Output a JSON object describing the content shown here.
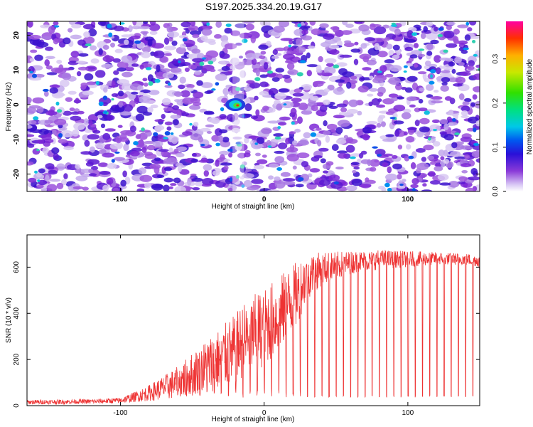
{
  "title": "S197.2025.334.20.19.G17",
  "chart_data": [
    {
      "type": "heatmap",
      "xlabel": "Height of straight line (km)",
      "ylabel": "Frequency (Hz)",
      "xlim": [
        -165,
        150
      ],
      "ylim": [
        -25,
        24
      ],
      "xticks": [
        "-100",
        "0",
        "100"
      ],
      "xtick_values": [
        -100,
        0,
        100
      ],
      "yticks": [
        "-20",
        "-10",
        "0",
        "10",
        "20"
      ],
      "ytick_values": [
        -20,
        -10,
        0,
        10,
        20
      ],
      "peak": {
        "x": -20,
        "y": 0,
        "amplitude": 0.38
      },
      "colorbar": {
        "label": "Normalized spectral amplitude",
        "range": [
          0.0,
          0.385
        ],
        "ticks": [
          "0.0",
          "0.1",
          "0.2",
          "0.3"
        ],
        "tick_values": [
          0.0,
          0.1,
          0.2,
          0.3
        ]
      }
    },
    {
      "type": "line",
      "xlabel": "Height of straight line (km)",
      "ylabel": "SNR (10 * v/v)",
      "xlim": [
        -165,
        150
      ],
      "ylim": [
        0,
        740
      ],
      "xticks": [
        "-100",
        "0",
        "100"
      ],
      "xtick_values": [
        -100,
        0,
        100
      ],
      "yticks": [
        "0",
        "200",
        "400",
        "600"
      ],
      "ytick_values": [
        0,
        200,
        400,
        600
      ],
      "color": "#ee3333",
      "envelope": {
        "x": [
          -165,
          -120,
          -100,
          -90,
          -80,
          -70,
          -60,
          -50,
          -40,
          -30,
          -20,
          -15,
          -10,
          0,
          10,
          20,
          25,
          30,
          40,
          60,
          80,
          100,
          120,
          140,
          150
        ],
        "upper": [
          25,
          28,
          35,
          60,
          90,
          130,
          170,
          230,
          290,
          340,
          400,
          440,
          470,
          510,
          560,
          610,
          640,
          660,
          665,
          670,
          675,
          670,
          665,
          660,
          655
        ],
        "lower": [
          5,
          8,
          10,
          15,
          20,
          25,
          30,
          40,
          55,
          70,
          90,
          110,
          130,
          170,
          230,
          300,
          380,
          460,
          520,
          570,
          590,
          600,
          610,
          610,
          600
        ]
      },
      "dropout_spacing_km": 5,
      "dropout_floor": 35
    }
  ]
}
